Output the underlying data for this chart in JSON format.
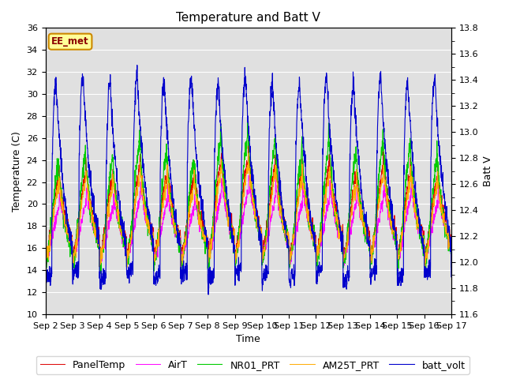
{
  "title": "Temperature and Batt V",
  "xlabel": "Time",
  "ylabel_left": "Temperature (C)",
  "ylabel_right": "Batt V",
  "ylim_left": [
    10,
    36
  ],
  "ylim_right": [
    11.6,
    13.8
  ],
  "yticks_left": [
    10,
    12,
    14,
    16,
    18,
    20,
    22,
    24,
    26,
    28,
    30,
    32,
    34,
    36
  ],
  "yticks_right": [
    11.6,
    11.8,
    12.0,
    12.2,
    12.4,
    12.6,
    12.8,
    13.0,
    13.2,
    13.4,
    13.6,
    13.8
  ],
  "xtick_labels": [
    "Sep 2",
    "Sep 3",
    "Sep 4",
    "Sep 5",
    "Sep 6",
    "Sep 7",
    "Sep 8",
    "Sep 9",
    "Sep 10",
    "Sep 11",
    "Sep 12",
    "Sep 13",
    "Sep 14",
    "Sep 15",
    "Sep 16",
    "Sep 17"
  ],
  "station_label": "EE_met",
  "legend_entries": [
    "PanelTemp",
    "AirT",
    "NR01_PRT",
    "AM25T_PRT",
    "batt_volt"
  ],
  "line_colors": [
    "#dd0000",
    "#ff00ff",
    "#00cc00",
    "#ffaa00",
    "#0000cc"
  ],
  "plot_bg_color": "#e0e0e0",
  "title_fontsize": 11,
  "axis_fontsize": 9,
  "tick_fontsize": 8,
  "legend_fontsize": 9
}
